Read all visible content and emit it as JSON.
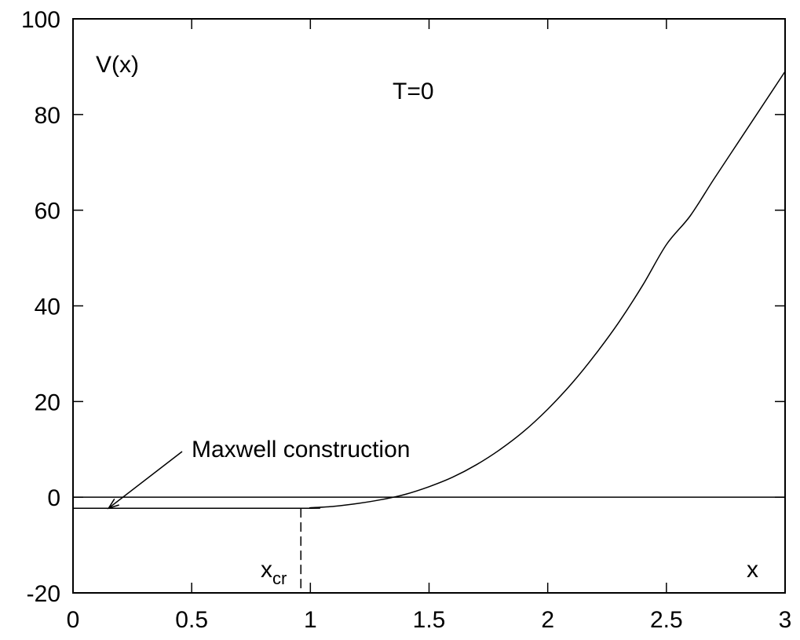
{
  "chart_data": {
    "type": "line",
    "title": "",
    "xlabel": "x",
    "ylabel": "V(x)",
    "xlim": [
      0,
      3
    ],
    "ylim": [
      -20,
      100
    ],
    "x_ticks": [
      "0",
      "0.5",
      "1",
      "1.5",
      "2",
      "2.5",
      "3"
    ],
    "y_ticks": [
      "-20",
      "0",
      "20",
      "40",
      "60",
      "80",
      "100"
    ],
    "grid": false,
    "series": [
      {
        "x": [
          0.0,
          0.96,
          1.0,
          1.1,
          1.2,
          1.3,
          1.4,
          1.5,
          1.6,
          1.7,
          1.8,
          1.9,
          2.0,
          2.1,
          2.2,
          2.3,
          2.4,
          2.5,
          2.6,
          2.7,
          2.8,
          2.9,
          3.0
        ],
        "values": [
          -2.3,
          -2.3,
          -2.2,
          -1.9,
          -1.3,
          -0.5,
          0.6,
          2.2,
          4.2,
          6.8,
          10.0,
          13.8,
          18.4,
          23.7,
          29.8,
          36.6,
          44.3,
          52.8,
          58.8,
          66.5,
          74.0,
          81.5,
          89.0
        ]
      }
    ],
    "reference_lines": {
      "zero_line_y": 0,
      "critical_x": 0.96
    },
    "annotations": {
      "temperature": "T=0",
      "xcr_main": "x",
      "xcr_sub": "cr",
      "maxwell": "Maxwell construction"
    }
  }
}
